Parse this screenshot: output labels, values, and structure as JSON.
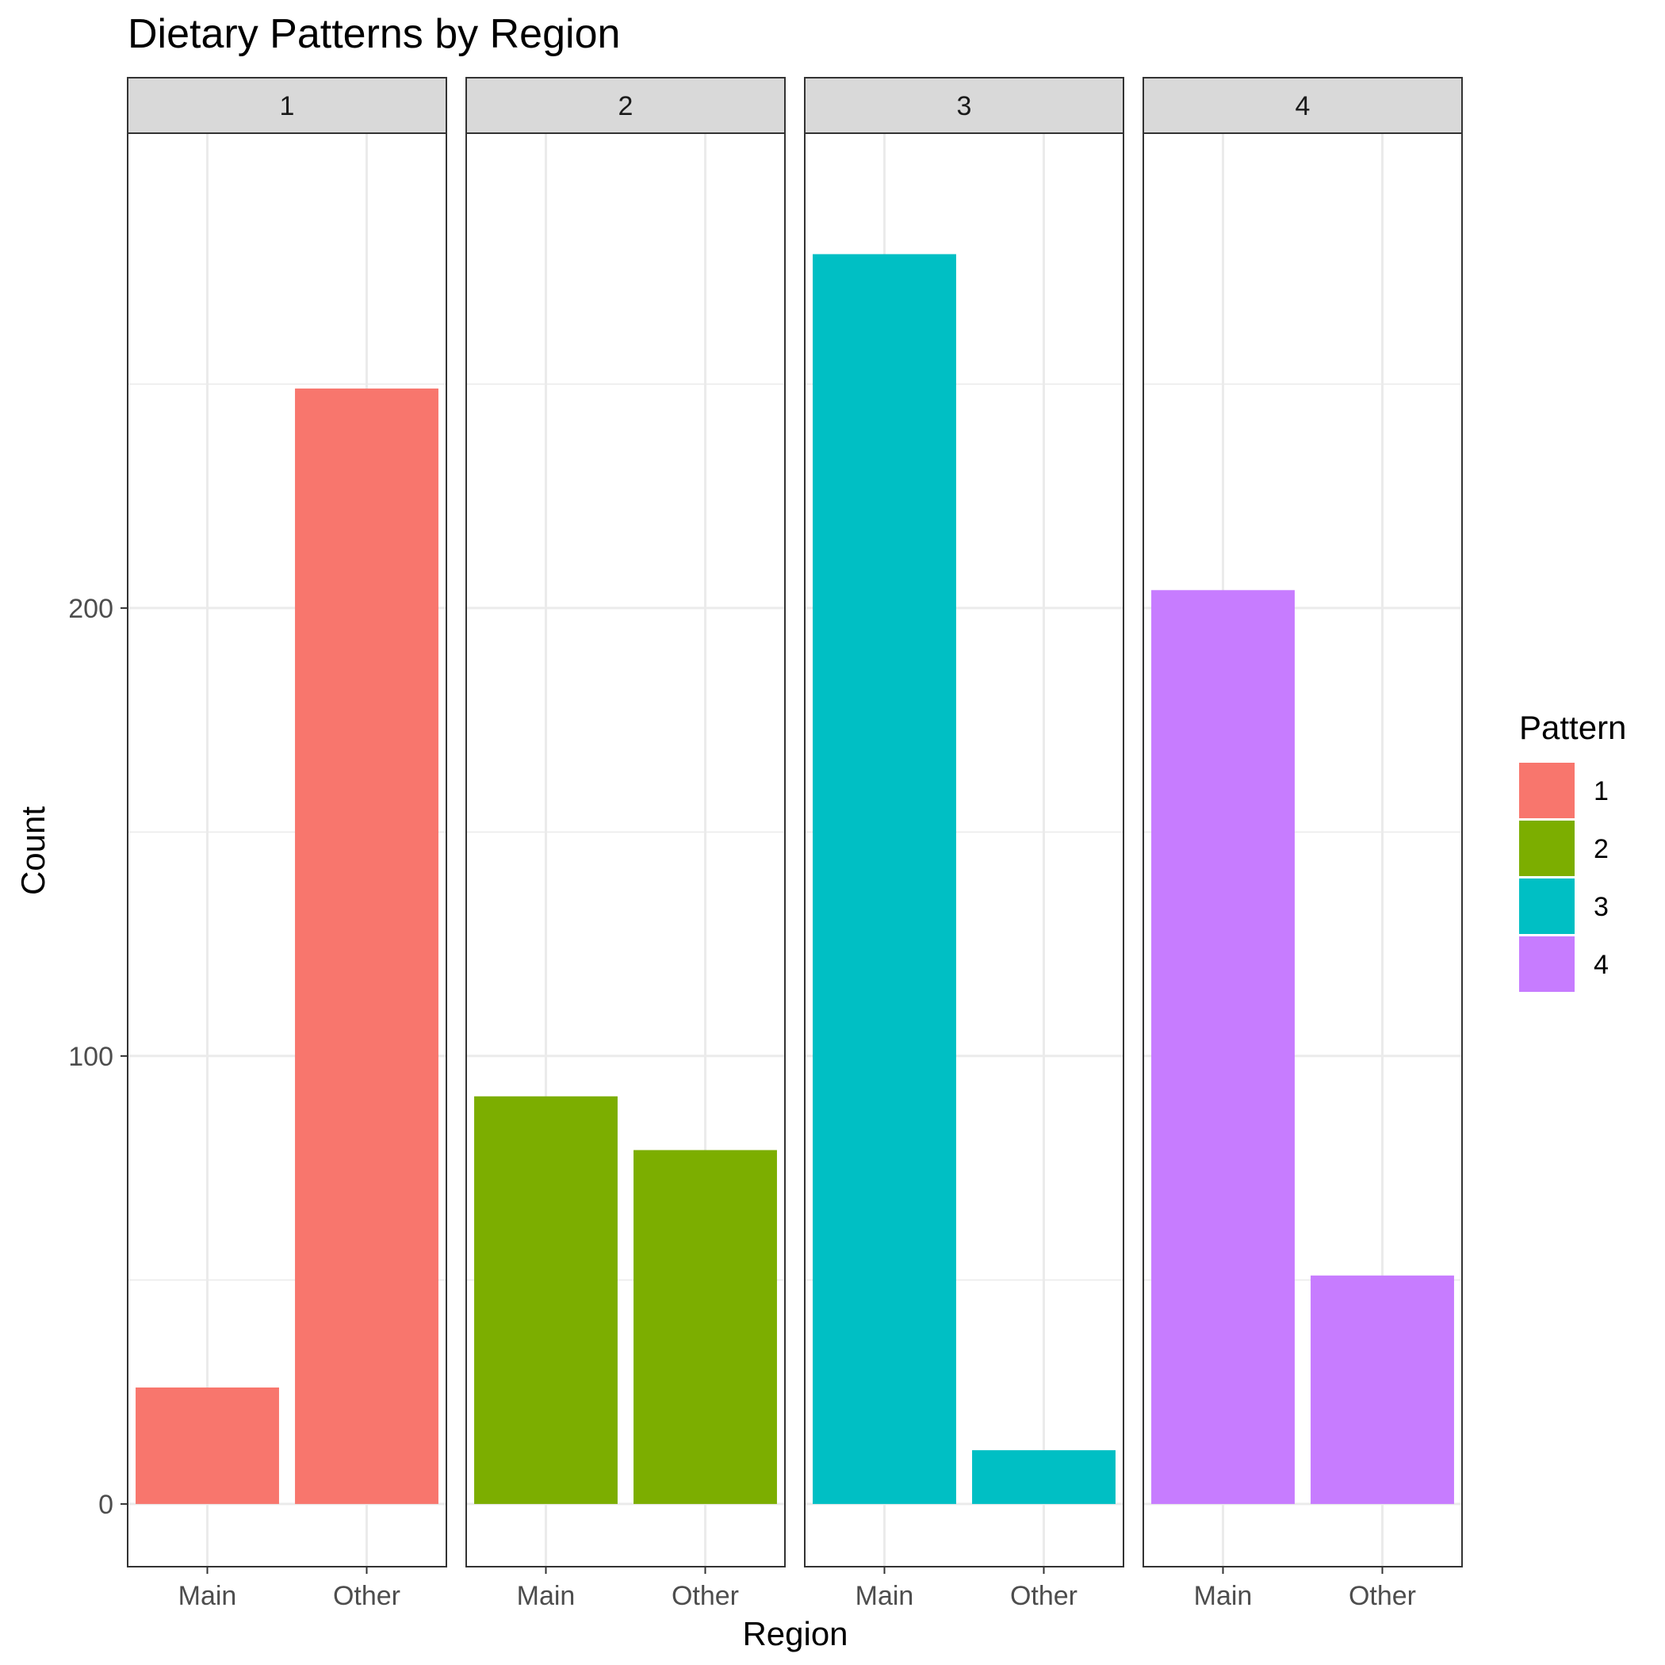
{
  "chart_data": {
    "type": "bar",
    "title": "Dietary Patterns by Region",
    "xlabel": "Region",
    "ylabel": "Count",
    "categories": [
      "Main",
      "Other"
    ],
    "facets": [
      "1",
      "2",
      "3",
      "4"
    ],
    "series": [
      {
        "name": "1",
        "color": "#F8766D",
        "values": [
          26,
          249
        ]
      },
      {
        "name": "2",
        "color": "#7CAE00",
        "values": [
          91,
          79
        ]
      },
      {
        "name": "3",
        "color": "#00BFC4",
        "values": [
          279,
          12
        ]
      },
      {
        "name": "4",
        "color": "#C77CFF",
        "values": [
          204,
          51
        ]
      }
    ],
    "yticks": [
      0,
      100,
      200
    ],
    "ylim": [
      -14,
      306
    ],
    "grid": true,
    "legend": {
      "title": "Pattern",
      "position": "right",
      "labels": [
        "1",
        "2",
        "3",
        "4"
      ]
    }
  }
}
